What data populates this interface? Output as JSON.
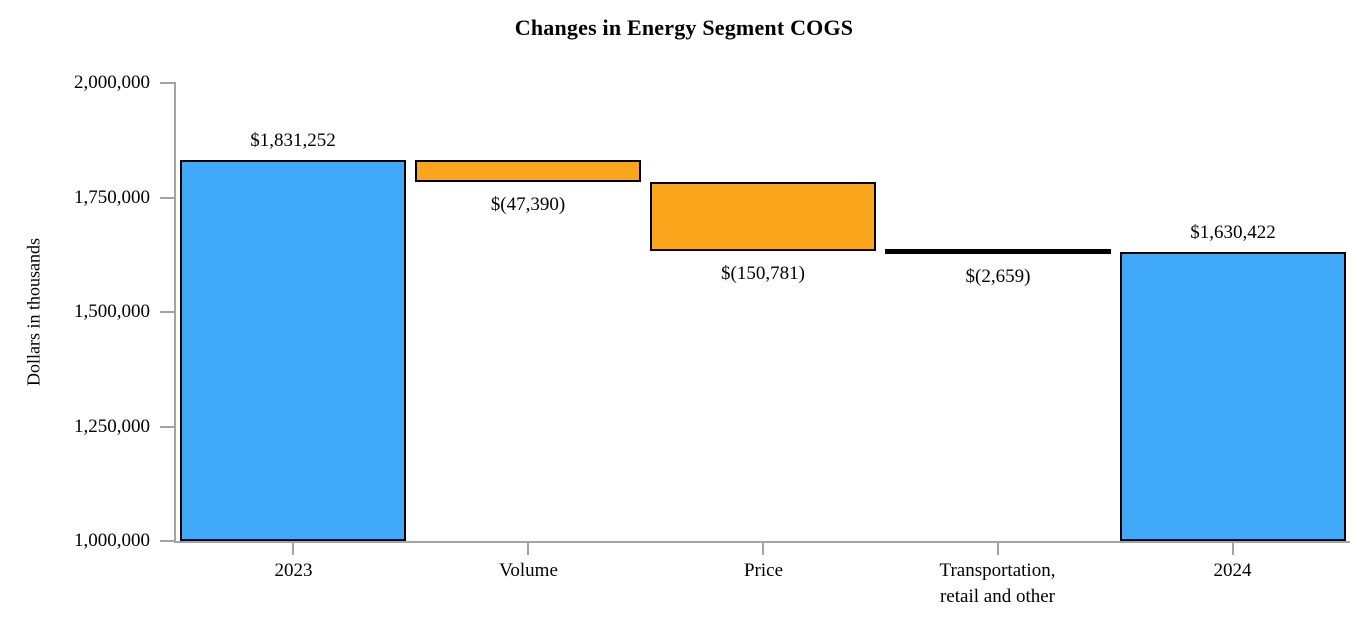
{
  "chart_data": {
    "type": "waterfall",
    "title": "Changes in Energy Segment COGS",
    "ylabel": "Dollars in thousands",
    "ylim": [
      1000000,
      2000000
    ],
    "grid": false,
    "colors": {
      "total_bar": "#41aaf8",
      "delta_bar": "#f9a61d",
      "bar_border": "#000000",
      "axis": "#a3a3a3",
      "text": "#000000"
    },
    "yticks": [
      {
        "value": 2000000,
        "label": "2,000,000"
      },
      {
        "value": 1750000,
        "label": "1,750,000"
      },
      {
        "value": 1500000,
        "label": "1,500,000"
      },
      {
        "value": 1250000,
        "label": "1,250,000"
      },
      {
        "value": 1000000,
        "label": "1,000,000"
      }
    ],
    "steps": [
      {
        "label_lines": [
          "2023"
        ],
        "kind": "total",
        "start": 0,
        "end": 1831252,
        "value": 1831252,
        "value_label": "$1,831,252",
        "value_label_position": "above"
      },
      {
        "label_lines": [
          "Volume"
        ],
        "kind": "decrease",
        "start": 1831252,
        "end": 1783862,
        "value": -47390,
        "value_label": "$(47,390)",
        "value_label_position": "below"
      },
      {
        "label_lines": [
          "Price"
        ],
        "kind": "decrease",
        "start": 1783862,
        "end": 1633081,
        "value": -150781,
        "value_label": "$(150,781)",
        "value_label_position": "below"
      },
      {
        "label_lines": [
          "Transportation,",
          "retail and other"
        ],
        "kind": "decrease",
        "start": 1633081,
        "end": 1630422,
        "value": -2659,
        "value_label": "$(2,659)",
        "value_label_position": "below"
      },
      {
        "label_lines": [
          "2024"
        ],
        "kind": "total",
        "start": 0,
        "end": 1630422,
        "value": 1630422,
        "value_label": "$1,630,422",
        "value_label_position": "above"
      }
    ]
  }
}
